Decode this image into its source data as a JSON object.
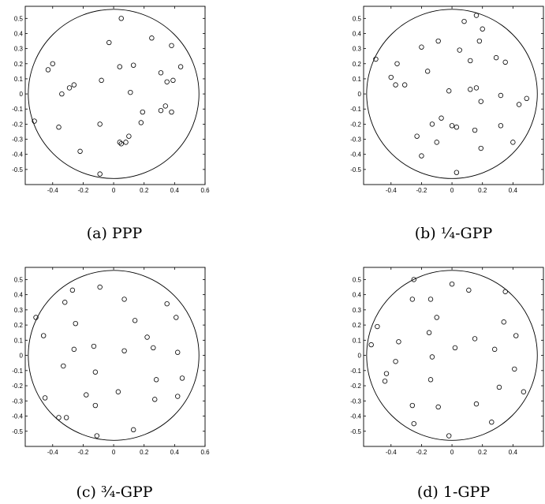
{
  "chart_data": [
    {
      "type": "scatter",
      "caption": "(a) PPP",
      "x_ticks": [
        "-0.4",
        "-0.2",
        "0",
        "0.2",
        "0.4",
        "0.6"
      ],
      "y_ticks": [
        "0.5",
        "0.4",
        "0.3",
        "0.2",
        "0.1",
        "0",
        "-0.1",
        "-0.2",
        "-0.3",
        "-0.4",
        "-0.5"
      ],
      "xlim": [
        -0.58,
        0.6
      ],
      "ylim": [
        -0.6,
        0.58
      ],
      "window": {
        "shape": "circle",
        "center": [
          0,
          0
        ],
        "radius": 0.56
      },
      "points": [
        [
          0.05,
          0.5
        ],
        [
          -0.03,
          0.34
        ],
        [
          0.25,
          0.37
        ],
        [
          0.38,
          0.32
        ],
        [
          -0.4,
          0.2
        ],
        [
          -0.43,
          0.16
        ],
        [
          0.04,
          0.18
        ],
        [
          0.13,
          0.19
        ],
        [
          0.44,
          0.18
        ],
        [
          0.31,
          0.14
        ],
        [
          -0.08,
          0.09
        ],
        [
          0.35,
          0.08
        ],
        [
          0.39,
          0.09
        ],
        [
          -0.26,
          0.06
        ],
        [
          -0.29,
          0.04
        ],
        [
          -0.34,
          0.0
        ],
        [
          0.11,
          0.01
        ],
        [
          0.34,
          -0.08
        ],
        [
          0.31,
          -0.11
        ],
        [
          0.19,
          -0.12
        ],
        [
          0.38,
          -0.12
        ],
        [
          -0.52,
          -0.18
        ],
        [
          -0.36,
          -0.22
        ],
        [
          -0.09,
          -0.2
        ],
        [
          0.18,
          -0.19
        ],
        [
          0.1,
          -0.28
        ],
        [
          0.04,
          -0.32
        ],
        [
          0.05,
          -0.33
        ],
        [
          0.08,
          -0.32
        ],
        [
          -0.22,
          -0.38
        ],
        [
          -0.09,
          -0.53
        ]
      ]
    },
    {
      "type": "scatter",
      "caption": "(b) ¼-GPP",
      "x_ticks": [
        "-0.4",
        "-0.2",
        "0",
        "0.2",
        "0.4"
      ],
      "y_ticks": [
        "0.5",
        "0.4",
        "0.3",
        "0.2",
        "0.1",
        "0",
        "-0.1",
        "-0.2",
        "-0.3",
        "-0.4",
        "-0.5"
      ],
      "xlim": [
        -0.58,
        0.6
      ],
      "ylim": [
        -0.6,
        0.58
      ],
      "window": {
        "shape": "circle",
        "center": [
          0,
          0
        ],
        "radius": 0.56
      },
      "points": [
        [
          0.16,
          0.52
        ],
        [
          0.08,
          0.48
        ],
        [
          0.2,
          0.43
        ],
        [
          -0.09,
          0.35
        ],
        [
          0.18,
          0.35
        ],
        [
          -0.2,
          0.31
        ],
        [
          0.05,
          0.29
        ],
        [
          -0.5,
          0.23
        ],
        [
          0.29,
          0.24
        ],
        [
          0.12,
          0.22
        ],
        [
          0.35,
          0.21
        ],
        [
          -0.36,
          0.2
        ],
        [
          -0.16,
          0.15
        ],
        [
          -0.4,
          0.11
        ],
        [
          -0.37,
          0.06
        ],
        [
          -0.31,
          0.06
        ],
        [
          0.16,
          0.04
        ],
        [
          0.12,
          0.03
        ],
        [
          -0.02,
          0.02
        ],
        [
          0.32,
          -0.01
        ],
        [
          0.49,
          -0.03
        ],
        [
          0.19,
          -0.05
        ],
        [
          0.44,
          -0.07
        ],
        [
          -0.07,
          -0.16
        ],
        [
          -0.13,
          -0.2
        ],
        [
          0.0,
          -0.21
        ],
        [
          0.03,
          -0.22
        ],
        [
          0.32,
          -0.21
        ],
        [
          0.15,
          -0.24
        ],
        [
          -0.23,
          -0.28
        ],
        [
          -0.1,
          -0.32
        ],
        [
          0.4,
          -0.32
        ],
        [
          0.19,
          -0.36
        ],
        [
          -0.2,
          -0.41
        ],
        [
          0.03,
          -0.52
        ]
      ]
    },
    {
      "type": "scatter",
      "caption": "(c) ¾-GPP",
      "x_ticks": [
        "-0.4",
        "-0.2",
        "0",
        "0.2",
        "0.4",
        "0.6"
      ],
      "y_ticks": [
        "0.5",
        "0.4",
        "0.3",
        "0.2",
        "0.1",
        "0",
        "-0.1",
        "-0.2",
        "-0.3",
        "-0.4",
        "-0.5"
      ],
      "xlim": [
        -0.58,
        0.6
      ],
      "ylim": [
        -0.6,
        0.58
      ],
      "window": {
        "shape": "circle",
        "center": [
          0,
          0
        ],
        "radius": 0.56
      },
      "points": [
        [
          -0.09,
          0.45
        ],
        [
          -0.27,
          0.43
        ],
        [
          0.07,
          0.37
        ],
        [
          -0.32,
          0.35
        ],
        [
          0.35,
          0.34
        ],
        [
          -0.51,
          0.25
        ],
        [
          0.41,
          0.25
        ],
        [
          0.14,
          0.23
        ],
        [
          -0.25,
          0.21
        ],
        [
          -0.46,
          0.13
        ],
        [
          0.22,
          0.12
        ],
        [
          -0.13,
          0.06
        ],
        [
          -0.26,
          0.04
        ],
        [
          0.07,
          0.03
        ],
        [
          0.26,
          0.05
        ],
        [
          0.42,
          0.02
        ],
        [
          -0.33,
          -0.07
        ],
        [
          -0.12,
          -0.11
        ],
        [
          0.28,
          -0.16
        ],
        [
          0.45,
          -0.15
        ],
        [
          -0.18,
          -0.26
        ],
        [
          0.03,
          -0.24
        ],
        [
          -0.45,
          -0.28
        ],
        [
          0.42,
          -0.27
        ],
        [
          0.27,
          -0.29
        ],
        [
          -0.12,
          -0.33
        ],
        [
          -0.36,
          -0.41
        ],
        [
          -0.31,
          -0.41
        ],
        [
          0.13,
          -0.49
        ],
        [
          -0.11,
          -0.53
        ]
      ]
    },
    {
      "type": "scatter",
      "caption": "(d) 1-GPP",
      "x_ticks": [
        "-0.4",
        "-0.2",
        "0",
        "0.2",
        "0.4"
      ],
      "y_ticks": [
        "0.5",
        "0.4",
        "0.3",
        "0.2",
        "0.1",
        "0",
        "-0.1",
        "-0.2",
        "-0.3",
        "-0.4",
        "-0.5"
      ],
      "xlim": [
        -0.58,
        0.6
      ],
      "ylim": [
        -0.6,
        0.58
      ],
      "window": {
        "shape": "circle",
        "center": [
          0,
          0
        ],
        "radius": 0.56
      },
      "points": [
        [
          -0.25,
          0.5
        ],
        [
          0.0,
          0.47
        ],
        [
          0.11,
          0.43
        ],
        [
          0.35,
          0.42
        ],
        [
          -0.26,
          0.37
        ],
        [
          -0.14,
          0.37
        ],
        [
          -0.1,
          0.25
        ],
        [
          0.34,
          0.22
        ],
        [
          -0.49,
          0.19
        ],
        [
          -0.15,
          0.15
        ],
        [
          0.42,
          0.13
        ],
        [
          0.15,
          0.11
        ],
        [
          -0.35,
          0.09
        ],
        [
          -0.53,
          0.07
        ],
        [
          0.28,
          0.04
        ],
        [
          0.02,
          0.05
        ],
        [
          -0.13,
          -0.01
        ],
        [
          -0.37,
          -0.04
        ],
        [
          0.41,
          -0.09
        ],
        [
          -0.43,
          -0.12
        ],
        [
          -0.44,
          -0.17
        ],
        [
          -0.14,
          -0.16
        ],
        [
          0.31,
          -0.21
        ],
        [
          0.47,
          -0.24
        ],
        [
          0.16,
          -0.32
        ],
        [
          -0.26,
          -0.33
        ],
        [
          -0.09,
          -0.34
        ],
        [
          0.26,
          -0.44
        ],
        [
          -0.25,
          -0.45
        ],
        [
          -0.02,
          -0.53
        ]
      ]
    }
  ]
}
